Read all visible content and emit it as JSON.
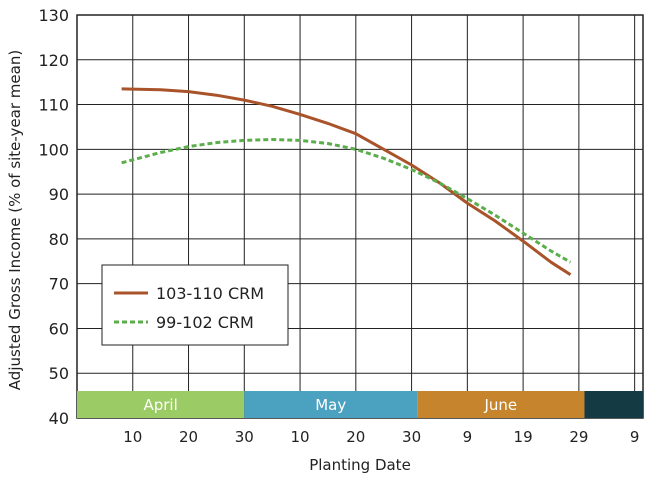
{
  "chart_data": {
    "type": "line",
    "title": "",
    "xlabel": "Planting Date",
    "ylabel": "Adjusted Gross Income (% of site-year mean)",
    "x_unit": "days after March 31",
    "xlim": [
      0,
      101.5
    ],
    "ylim": [
      40,
      130
    ],
    "yticks": [
      40,
      50,
      60,
      70,
      80,
      90,
      100,
      110,
      120,
      130
    ],
    "xticks": [
      {
        "x": 10,
        "label": "10"
      },
      {
        "x": 20,
        "label": "20"
      },
      {
        "x": 30,
        "label": "30"
      },
      {
        "x": 40,
        "label": "10"
      },
      {
        "x": 50,
        "label": "20"
      },
      {
        "x": 60,
        "label": "30"
      },
      {
        "x": 70,
        "label": "9"
      },
      {
        "x": 80,
        "label": "19"
      },
      {
        "x": 90,
        "label": "29"
      },
      {
        "x": 100,
        "label": "9"
      }
    ],
    "grid": true,
    "months": [
      {
        "label": "April",
        "start": 0,
        "end": 30,
        "color": "#9bcb64"
      },
      {
        "label": "May",
        "start": 30,
        "end": 61,
        "color": "#4ba1c0"
      },
      {
        "label": "June",
        "start": 61,
        "end": 91,
        "color": "#c6852c"
      },
      {
        "label": "",
        "start": 91,
        "end": 101.5,
        "color": "#143a43"
      }
    ],
    "legend_position": "lower-left",
    "series": [
      {
        "name": "103-110 CRM",
        "color": "#a9532b",
        "dash": false,
        "x": [
          8,
          15,
          20,
          25,
          30,
          35,
          40,
          45,
          50,
          55,
          60,
          65,
          70,
          75,
          80,
          85,
          88.5
        ],
        "y": [
          113.5,
          113.3,
          112.9,
          112.1,
          111.0,
          109.6,
          107.8,
          105.8,
          103.5,
          100.0,
          96.5,
          92.5,
          88.0,
          84.0,
          79.5,
          74.8,
          72.0
        ]
      },
      {
        "name": "99-102 CRM",
        "color": "#5cad4c",
        "dash": true,
        "x": [
          8,
          15,
          20,
          25,
          30,
          35,
          40,
          45,
          50,
          55,
          60,
          65,
          70,
          75,
          80,
          85,
          88.5
        ],
        "y": [
          97.0,
          99.3,
          100.6,
          101.5,
          102.0,
          102.2,
          102.0,
          101.3,
          100.0,
          98.0,
          95.5,
          92.5,
          89.0,
          85.3,
          81.3,
          77.3,
          74.8
        ]
      }
    ]
  }
}
